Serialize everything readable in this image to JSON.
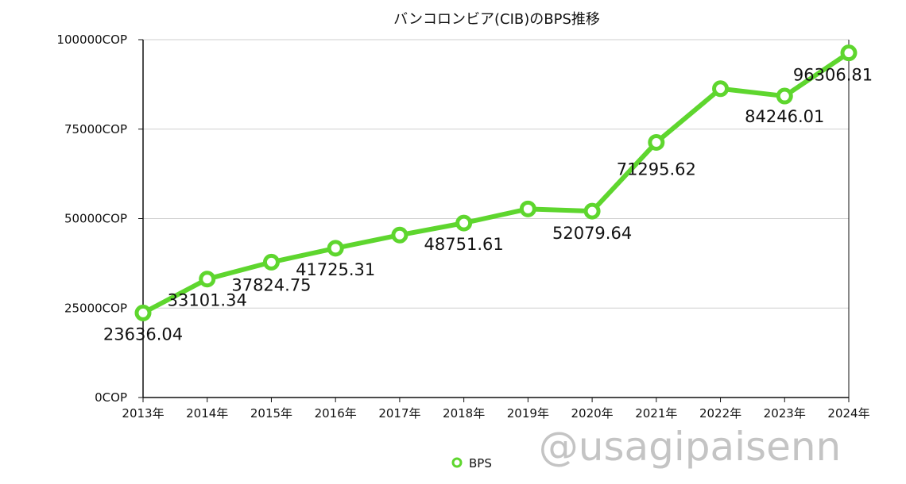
{
  "chart_data": {
    "type": "line",
    "title": "バンコロンビア(CIB)のBPS推移",
    "categories": [
      "2013年",
      "2014年",
      "2015年",
      "2016年",
      "2017年",
      "2018年",
      "2019年",
      "2020年",
      "2021年",
      "2022年",
      "2023年",
      "2024年"
    ],
    "series": [
      {
        "name": "BPS",
        "color": "#5ed62e",
        "values": [
          23636.04,
          33101.34,
          37824.75,
          41725.31,
          45400,
          48751.61,
          52700,
          52079.64,
          71295.62,
          86300,
          84246.01,
          96306.81
        ],
        "data_labels": [
          {
            "index": 0,
            "text": "23636.04"
          },
          {
            "index": 1,
            "text": "33101.34"
          },
          {
            "index": 2,
            "text": "37824.75"
          },
          {
            "index": 3,
            "text": "41725.31"
          },
          {
            "index": 5,
            "text": "48751.61"
          },
          {
            "index": 7,
            "text": "52079.64"
          },
          {
            "index": 8,
            "text": "71295.62"
          },
          {
            "index": 10,
            "text": "84246.01"
          },
          {
            "index": 11,
            "text": "96306.81"
          }
        ]
      }
    ],
    "ylim": [
      0,
      100000
    ],
    "yticks": [
      0,
      25000,
      50000,
      75000,
      100000
    ],
    "ytick_labels": [
      "0COP",
      "25000COP",
      "50000COP",
      "75000COP",
      "100000COP"
    ],
    "grid": "horizontal",
    "legend_position": "bottom"
  },
  "watermark": "@usagipaisenn"
}
